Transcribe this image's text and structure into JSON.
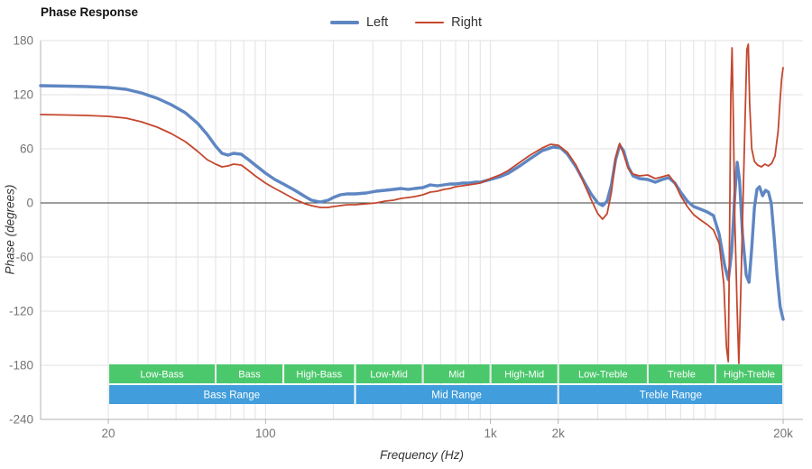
{
  "chart_data": {
    "type": "line",
    "title": "Phase Response",
    "xlabel": "Frequency (Hz)",
    "ylabel": "Phase (degrees)",
    "x_scale": "log",
    "xlim": [
      10,
      24500
    ],
    "ylim": [
      -240,
      180
    ],
    "grid": true,
    "legend_position": "top-center",
    "grid_color": "#e2e2e2",
    "zero_line_color": "#3d3d3d",
    "axis_color": "#b3b3b3",
    "tick_label_color": "#757575",
    "x_ticks": [
      {
        "f": 20,
        "label": "20"
      },
      {
        "f": 100,
        "label": "100"
      },
      {
        "f": 1000,
        "label": "1k"
      },
      {
        "f": 2000,
        "label": "2k"
      },
      {
        "f": 20000,
        "label": "20k"
      }
    ],
    "y_ticks": [
      {
        "v": 180,
        "label": "180"
      },
      {
        "v": 120,
        "label": "120"
      },
      {
        "v": 60,
        "label": "60"
      },
      {
        "v": 0,
        "label": "0"
      },
      {
        "v": -60,
        "label": "-60"
      },
      {
        "v": -120,
        "label": "-120"
      },
      {
        "v": -180,
        "label": "-180"
      },
      {
        "v": -240,
        "label": "-240"
      }
    ],
    "series": [
      {
        "name": "Left",
        "color": "#5e86c2",
        "width": 3.4,
        "points": [
          [
            10,
            130
          ],
          [
            13,
            129.5
          ],
          [
            16,
            129
          ],
          [
            20,
            128
          ],
          [
            24,
            126
          ],
          [
            28,
            122
          ],
          [
            33,
            116
          ],
          [
            38,
            109
          ],
          [
            44,
            100
          ],
          [
            50,
            88
          ],
          [
            55,
            76
          ],
          [
            60,
            63
          ],
          [
            64,
            55
          ],
          [
            68,
            53
          ],
          [
            72,
            55
          ],
          [
            78,
            54
          ],
          [
            84,
            48
          ],
          [
            90,
            42
          ],
          [
            100,
            33
          ],
          [
            110,
            26
          ],
          [
            120,
            21
          ],
          [
            135,
            14
          ],
          [
            150,
            7
          ],
          [
            160,
            3
          ],
          [
            175,
            1
          ],
          [
            190,
            3
          ],
          [
            200,
            6
          ],
          [
            215,
            9
          ],
          [
            230,
            10
          ],
          [
            250,
            10
          ],
          [
            280,
            11
          ],
          [
            310,
            13
          ],
          [
            340,
            14
          ],
          [
            370,
            15
          ],
          [
            400,
            16
          ],
          [
            430,
            15
          ],
          [
            460,
            16
          ],
          [
            500,
            17
          ],
          [
            540,
            20
          ],
          [
            580,
            19
          ],
          [
            620,
            20
          ],
          [
            660,
            21
          ],
          [
            700,
            21
          ],
          [
            750,
            22
          ],
          [
            800,
            22
          ],
          [
            850,
            23
          ],
          [
            900,
            23
          ],
          [
            1000,
            26
          ],
          [
            1100,
            29
          ],
          [
            1200,
            33
          ],
          [
            1350,
            41
          ],
          [
            1500,
            49
          ],
          [
            1700,
            58
          ],
          [
            1900,
            62
          ],
          [
            2050,
            61
          ],
          [
            2200,
            54
          ],
          [
            2400,
            40
          ],
          [
            2600,
            24
          ],
          [
            2800,
            10
          ],
          [
            3000,
            0
          ],
          [
            3150,
            -3
          ],
          [
            3300,
            2
          ],
          [
            3450,
            20
          ],
          [
            3600,
            48
          ],
          [
            3750,
            64
          ],
          [
            3900,
            58
          ],
          [
            4100,
            40
          ],
          [
            4300,
            30
          ],
          [
            4600,
            27
          ],
          [
            5000,
            26
          ],
          [
            5400,
            23
          ],
          [
            5800,
            26
          ],
          [
            6200,
            28
          ],
          [
            6600,
            22
          ],
          [
            7000,
            12
          ],
          [
            7500,
            2
          ],
          [
            8000,
            -4
          ],
          [
            8600,
            -7
          ],
          [
            9200,
            -10
          ],
          [
            9800,
            -14
          ],
          [
            10400,
            -35
          ],
          [
            11000,
            -70
          ],
          [
            11400,
            -85
          ],
          [
            11800,
            -55
          ],
          [
            12200,
            10
          ],
          [
            12500,
            45
          ],
          [
            12800,
            25
          ],
          [
            13200,
            -35
          ],
          [
            13700,
            -80
          ],
          [
            14100,
            -88
          ],
          [
            14500,
            -50
          ],
          [
            14900,
            -5
          ],
          [
            15300,
            15
          ],
          [
            15700,
            18
          ],
          [
            16200,
            8
          ],
          [
            16700,
            14
          ],
          [
            17200,
            12
          ],
          [
            17700,
            0
          ],
          [
            18200,
            -35
          ],
          [
            18800,
            -80
          ],
          [
            19400,
            -115
          ],
          [
            20000,
            -129
          ]
        ]
      },
      {
        "name": "Right",
        "color": "#c4472e",
        "width": 1.8,
        "points": [
          [
            10,
            98
          ],
          [
            13,
            97.5
          ],
          [
            16,
            97
          ],
          [
            20,
            96
          ],
          [
            24,
            94
          ],
          [
            28,
            90
          ],
          [
            33,
            84
          ],
          [
            38,
            77
          ],
          [
            44,
            68
          ],
          [
            50,
            57
          ],
          [
            55,
            48
          ],
          [
            60,
            43
          ],
          [
            64,
            40
          ],
          [
            68,
            41
          ],
          [
            72,
            43
          ],
          [
            78,
            42
          ],
          [
            84,
            36
          ],
          [
            90,
            30
          ],
          [
            100,
            22
          ],
          [
            110,
            16
          ],
          [
            120,
            11
          ],
          [
            135,
            4
          ],
          [
            150,
            -1
          ],
          [
            160,
            -3
          ],
          [
            175,
            -5
          ],
          [
            190,
            -5
          ],
          [
            200,
            -4
          ],
          [
            215,
            -3
          ],
          [
            230,
            -2
          ],
          [
            250,
            -2
          ],
          [
            280,
            -1
          ],
          [
            310,
            0
          ],
          [
            340,
            2
          ],
          [
            370,
            3
          ],
          [
            400,
            5
          ],
          [
            430,
            6
          ],
          [
            460,
            7
          ],
          [
            500,
            9
          ],
          [
            540,
            12
          ],
          [
            580,
            13
          ],
          [
            620,
            15
          ],
          [
            660,
            16
          ],
          [
            700,
            18
          ],
          [
            750,
            19
          ],
          [
            800,
            20
          ],
          [
            850,
            21
          ],
          [
            900,
            22
          ],
          [
            1000,
            27
          ],
          [
            1100,
            31
          ],
          [
            1200,
            36
          ],
          [
            1350,
            45
          ],
          [
            1500,
            53
          ],
          [
            1700,
            61
          ],
          [
            1850,
            65
          ],
          [
            2000,
            64
          ],
          [
            2200,
            56
          ],
          [
            2400,
            42
          ],
          [
            2600,
            22
          ],
          [
            2800,
            4
          ],
          [
            3000,
            -12
          ],
          [
            3150,
            -18
          ],
          [
            3300,
            -12
          ],
          [
            3450,
            12
          ],
          [
            3600,
            50
          ],
          [
            3750,
            66
          ],
          [
            3900,
            55
          ],
          [
            4100,
            38
          ],
          [
            4300,
            32
          ],
          [
            4600,
            30
          ],
          [
            5000,
            31
          ],
          [
            5400,
            27
          ],
          [
            5800,
            29
          ],
          [
            6200,
            31
          ],
          [
            6600,
            22
          ],
          [
            7000,
            8
          ],
          [
            7500,
            -4
          ],
          [
            8000,
            -13
          ],
          [
            8600,
            -19
          ],
          [
            9200,
            -24
          ],
          [
            9800,
            -30
          ],
          [
            10400,
            -45
          ],
          [
            10900,
            -90
          ],
          [
            11200,
            -160
          ],
          [
            11400,
            -176
          ],
          [
            11550,
            -40
          ],
          [
            11700,
            120
          ],
          [
            11850,
            172
          ],
          [
            12000,
            100
          ],
          [
            12200,
            -20
          ],
          [
            12500,
            -120
          ],
          [
            12700,
            -178
          ],
          [
            12900,
            -120
          ],
          [
            13200,
            -20
          ],
          [
            13500,
            80
          ],
          [
            13800,
            170
          ],
          [
            14000,
            176
          ],
          [
            14200,
            110
          ],
          [
            14500,
            60
          ],
          [
            14900,
            46
          ],
          [
            15400,
            42
          ],
          [
            16000,
            40
          ],
          [
            16600,
            43
          ],
          [
            17200,
            41
          ],
          [
            17800,
            44
          ],
          [
            18400,
            52
          ],
          [
            19000,
            80
          ],
          [
            19400,
            115
          ],
          [
            19700,
            138
          ],
          [
            20000,
            150
          ]
        ]
      }
    ],
    "bands": {
      "band_color": "#4cc86c",
      "range_color": "#419ddb",
      "label_color": "#ffffff",
      "bands": [
        {
          "label": "Low-Bass",
          "f1": 20,
          "f2": 60
        },
        {
          "label": "Bass",
          "f1": 60,
          "f2": 120
        },
        {
          "label": "High-Bass",
          "f1": 120,
          "f2": 250
        },
        {
          "label": "Low-Mid",
          "f1": 250,
          "f2": 500
        },
        {
          "label": "Mid",
          "f1": 500,
          "f2": 1000
        },
        {
          "label": "High-Mid",
          "f1": 1000,
          "f2": 2000
        },
        {
          "label": "Low-Treble",
          "f1": 2000,
          "f2": 5000
        },
        {
          "label": "Treble",
          "f1": 5000,
          "f2": 10000
        },
        {
          "label": "High-Treble",
          "f1": 10000,
          "f2": 20000
        }
      ],
      "ranges": [
        {
          "label": "Bass Range",
          "f1": 20,
          "f2": 250
        },
        {
          "label": "Mid Range",
          "f1": 250,
          "f2": 2000
        },
        {
          "label": "Treble Range",
          "f1": 2000,
          "f2": 20000
        }
      ]
    }
  }
}
